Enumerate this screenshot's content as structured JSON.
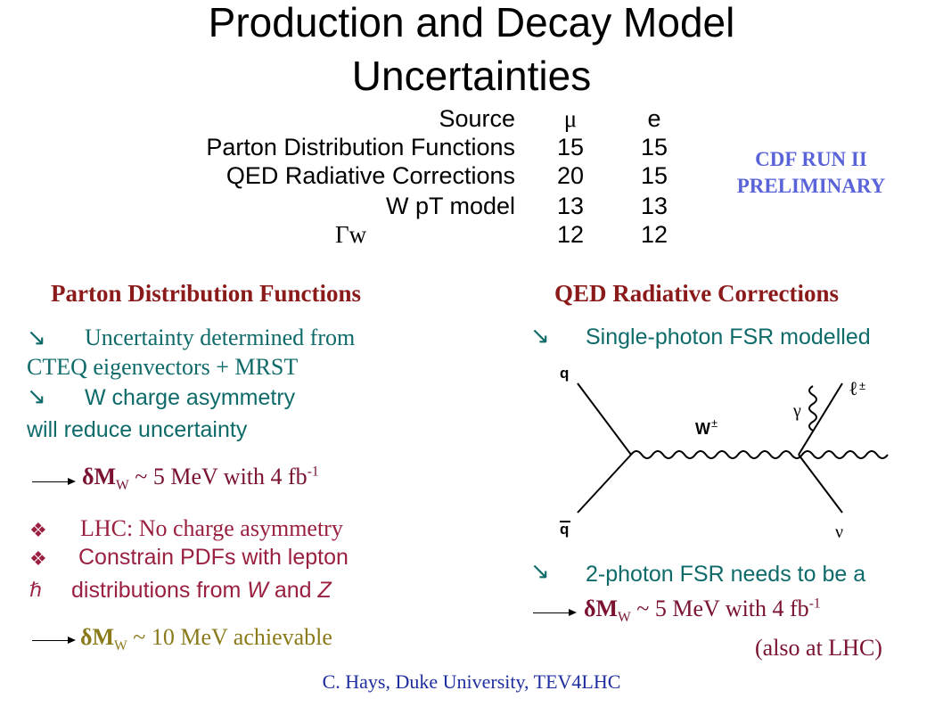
{
  "title": {
    "line1": "Production and Decay Model",
    "line2": "Uncertainties"
  },
  "table": {
    "headers": {
      "source": "Source",
      "mu": "μ",
      "e": "e"
    },
    "rows": [
      {
        "source": "Parton Distribution Functions",
        "mu": "15",
        "e": "15"
      },
      {
        "source": "QED Radiative Corrections",
        "mu": "20",
        "e": "15"
      },
      {
        "source": "W pT model",
        "mu": "13",
        "e": "13"
      },
      {
        "source": "Γw",
        "mu": "12",
        "e": "12"
      }
    ]
  },
  "badge": {
    "line1": "CDF RUN II",
    "line2": "PRELIMINARY"
  },
  "left": {
    "heading": "Parton Distribution Functions",
    "bullet1_line1": "Uncertainty determined from",
    "bullet1_line2": "CTEQ eigenvectors + MRST",
    "bullet2_line1": "W charge asymmetry",
    "bullet2_line2": "will reduce uncertainty",
    "result1": {
      "prefix": "δM",
      "sub": "W",
      "text": " ~ 5 MeV with 4 fb",
      "sup": "-1"
    },
    "lhc1": "LHC:  No charge asymmetry",
    "lhc2": "Constrain PDFs with lepton",
    "lhc3_a": "distributions from ",
    "lhc3_w": "W",
    "lhc3_b": " and ",
    "lhc3_z": "Z",
    "result2": {
      "prefix": "δM",
      "sub": "W",
      "text": " ~ 10 MeV achievable"
    }
  },
  "right": {
    "heading": "QED Radiative Corrections",
    "bullet1": "Single-photon FSR modelled",
    "bullet2": "2-photon FSR needs to be a",
    "result": {
      "prefix": "δM",
      "sub": "W",
      "text": " ~ 5 MeV with 4 fb",
      "sup": "-1"
    },
    "note": "(also at LHC)",
    "diagram": {
      "q": "q",
      "qbar": "q",
      "w": "W",
      "w_sup": "±",
      "gamma": "γ",
      "lepton": "ℓ",
      "lepton_sup": "±",
      "nu": "ν"
    }
  },
  "footer": "C. Hays, Duke University, TEV4LHC",
  "colors": {
    "heading": "#8b1a1a",
    "teal": "#0f6a6a",
    "crimson": "#9a2040",
    "olive": "#8b7a1a",
    "badge": "#5a63d8",
    "footer": "#1e2ea0"
  }
}
